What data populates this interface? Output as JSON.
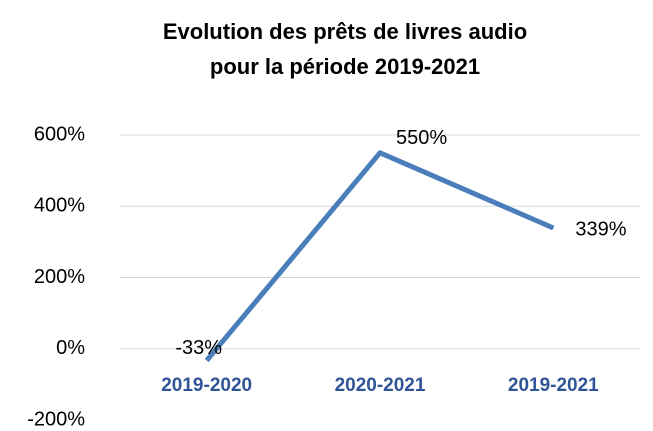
{
  "chart_data": {
    "type": "line",
    "title": [
      "Evolution des prêts de livres audio",
      "pour la période 2019-2021"
    ],
    "categories": [
      "2019-2020",
      "2020-2021",
      "2019-2021"
    ],
    "series": [
      {
        "name": "Evolution",
        "color": "#4a7ebb",
        "values": [
          -33,
          550,
          339
        ],
        "value_labels": [
          "-33%",
          "550%",
          "339%"
        ]
      }
    ],
    "ylim": [
      -200,
      600
    ],
    "yticks": [
      {
        "value": -200,
        "label": "-200%"
      },
      {
        "value": 0,
        "label": "0%"
      },
      {
        "value": 200,
        "label": "200%"
      },
      {
        "value": 400,
        "label": "400%"
      },
      {
        "value": 600,
        "label": "600%"
      }
    ],
    "grid": true
  }
}
